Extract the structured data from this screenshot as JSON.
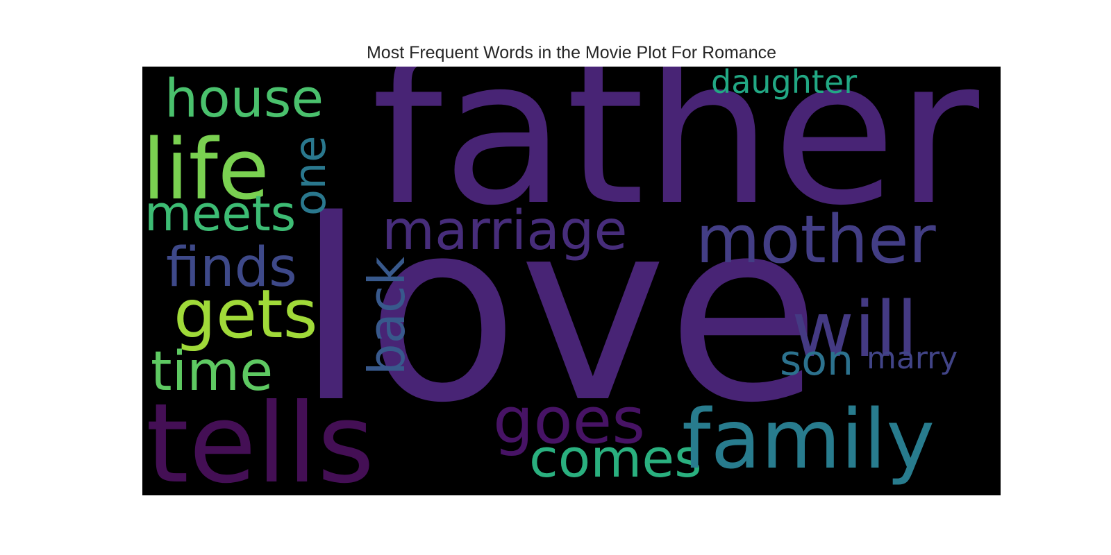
{
  "title": "Most Frequent Words in the Movie Plot For Romance",
  "background_color": "#000000",
  "words": [
    {
      "text": "father",
      "color": "#482475"
    },
    {
      "text": "love",
      "color": "#482475"
    },
    {
      "text": "house",
      "color": "#4ac16d"
    },
    {
      "text": "life",
      "color": "#7ad151"
    },
    {
      "text": "one",
      "color": "#2a788e"
    },
    {
      "text": "meets",
      "color": "#3dbc74"
    },
    {
      "text": "daughter",
      "color": "#22a884"
    },
    {
      "text": "marriage",
      "color": "#472d7b"
    },
    {
      "text": "mother",
      "color": "#433e85"
    },
    {
      "text": "finds",
      "color": "#3e4989"
    },
    {
      "text": "back",
      "color": "#38598c"
    },
    {
      "text": "gets",
      "color": "#a0da39"
    },
    {
      "text": "will",
      "color": "#443a83"
    },
    {
      "text": "time",
      "color": "#5ec962"
    },
    {
      "text": "son",
      "color": "#2c728e"
    },
    {
      "text": "marry",
      "color": "#414487"
    },
    {
      "text": "tells",
      "color": "#440f55"
    },
    {
      "text": "goes",
      "color": "#471365"
    },
    {
      "text": "comes",
      "color": "#2ab07f"
    },
    {
      "text": "family",
      "color": "#287c8e"
    }
  ]
}
